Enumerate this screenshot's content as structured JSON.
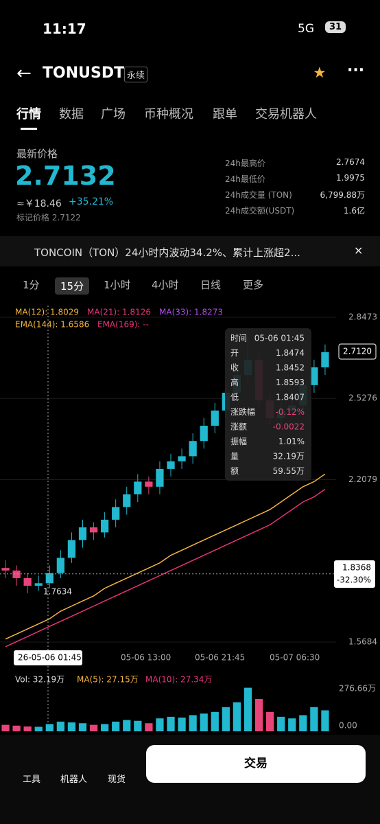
{
  "status": {
    "time": "11:17",
    "network": "5G",
    "battery": "31"
  },
  "header": {
    "symbol": "TONUSDT",
    "tag": "永续"
  },
  "tabs": [
    "行情",
    "数据",
    "广场",
    "币种概况",
    "跟单",
    "交易机器人"
  ],
  "price": {
    "label": "最新价格",
    "value": "2.7132",
    "cny": "≈￥18.46",
    "change": "+35.21%",
    "mark": "标记价格 2.7122"
  },
  "stats": [
    {
      "label": "24h最高价",
      "value": "2.7674"
    },
    {
      "label": "24h最低价",
      "value": "1.9975"
    },
    {
      "label": "24h成交量 (TON)",
      "value": "6,799.88万"
    },
    {
      "label": "24h成交额(USDT)",
      "value": "1.6亿"
    }
  ],
  "news": "TONCOIN（TON）24小时内波动34.2%、累计上涨超2...",
  "intervals": [
    "1分",
    "15分",
    "1小时",
    "4小时",
    "日线",
    "更多"
  ],
  "indicators": {
    "ma12": "MA(12): 1.8029",
    "ma21": "MA(21): 1.8126",
    "ma33": "MA(33): 1.8273",
    "ema144": "EMA(144): 1.6586",
    "ema169": "EMA(169): --"
  },
  "tooltip": [
    [
      "时间",
      "05-06 01:45"
    ],
    [
      "开",
      "1.8474"
    ],
    [
      "收",
      "1.8452"
    ],
    [
      "高",
      "1.8593"
    ],
    [
      "低",
      "1.8407"
    ],
    [
      "涨跌幅",
      "-0.12%"
    ],
    [
      "涨额",
      "-0.0022"
    ],
    [
      "振幅",
      "1.01%"
    ],
    [
      "量",
      "32.19万"
    ],
    [
      "额",
      "59.55万"
    ]
  ],
  "chart_data": {
    "type": "candlestick",
    "ylim": [
      1.5684,
      2.8473
    ],
    "yticks": [
      2.8473,
      2.5276,
      2.2079,
      1.5684
    ],
    "up_color": "#22b8cf",
    "down_color": "#e8447a",
    "candles": [
      [
        1.86,
        1.89,
        1.82,
        1.85
      ],
      [
        1.85,
        1.87,
        1.79,
        1.82
      ],
      [
        1.82,
        1.84,
        1.76,
        1.79
      ],
      [
        1.79,
        1.83,
        1.77,
        1.8
      ],
      [
        1.8,
        1.87,
        1.78,
        1.84
      ],
      [
        1.84,
        1.93,
        1.82,
        1.9
      ],
      [
        1.9,
        2.0,
        1.88,
        1.97
      ],
      [
        1.97,
        2.05,
        1.94,
        2.02
      ],
      [
        2.02,
        2.04,
        1.97,
        2.0
      ],
      [
        2.0,
        2.08,
        1.98,
        2.05
      ],
      [
        2.05,
        2.13,
        2.02,
        2.1
      ],
      [
        2.1,
        2.18,
        2.07,
        2.15
      ],
      [
        2.15,
        2.23,
        2.12,
        2.2
      ],
      [
        2.2,
        2.22,
        2.15,
        2.18
      ],
      [
        2.18,
        2.28,
        2.15,
        2.25
      ],
      [
        2.25,
        2.31,
        2.22,
        2.28
      ],
      [
        2.28,
        2.33,
        2.25,
        2.3
      ],
      [
        2.3,
        2.39,
        2.27,
        2.36
      ],
      [
        2.36,
        2.45,
        2.33,
        2.42
      ],
      [
        2.42,
        2.51,
        2.39,
        2.48
      ],
      [
        2.48,
        2.58,
        2.45,
        2.55
      ],
      [
        2.55,
        2.65,
        2.52,
        2.62
      ],
      [
        2.62,
        2.77,
        2.59,
        2.68
      ],
      [
        2.68,
        2.71,
        2.49,
        2.52
      ],
      [
        2.52,
        2.55,
        2.42,
        2.45
      ],
      [
        2.45,
        2.51,
        2.42,
        2.48
      ],
      [
        2.48,
        2.53,
        2.45,
        2.5
      ],
      [
        2.5,
        2.61,
        2.47,
        2.58
      ],
      [
        2.58,
        2.68,
        2.55,
        2.65
      ],
      [
        2.65,
        2.74,
        2.62,
        2.71
      ]
    ],
    "series": [
      {
        "name": "EMA(144)",
        "color": "#f5b53d",
        "values": [
          1.58,
          1.6,
          1.62,
          1.64,
          1.66,
          1.69,
          1.71,
          1.73,
          1.75,
          1.78,
          1.8,
          1.82,
          1.84,
          1.86,
          1.88,
          1.91,
          1.93,
          1.95,
          1.97,
          1.99,
          2.01,
          2.03,
          2.05,
          2.07,
          2.09,
          2.12,
          2.15,
          2.18,
          2.2,
          2.23
        ]
      },
      {
        "name": "EMA(169)",
        "color": "#e8337a",
        "values": [
          1.55,
          1.57,
          1.59,
          1.61,
          1.63,
          1.65,
          1.67,
          1.69,
          1.71,
          1.73,
          1.75,
          1.77,
          1.79,
          1.81,
          1.83,
          1.85,
          1.87,
          1.89,
          1.91,
          1.93,
          1.95,
          1.97,
          1.99,
          2.01,
          2.03,
          2.06,
          2.09,
          2.12,
          2.14,
          2.17
        ]
      }
    ],
    "last_price": "2.7120",
    "cursor_price": "1.8368",
    "cursor_change": "-32.30%",
    "low_label": "1.7634",
    "cursor_time": "26-05-06 01:45",
    "xlabels": [
      "05-06 13:00",
      "05-06 21:45",
      "05-07 06:30"
    ],
    "volume": {
      "legend": [
        "Vol: 32.19万",
        "MA(5): 27.15万",
        "MA(10): 27.34万"
      ],
      "ylim": [
        0,
        276.66
      ],
      "yticks": [
        {
          "value": 276.66,
          "label": "276.66万"
        },
        {
          "value": 0,
          "label": "0.00"
        }
      ],
      "values": [
        40,
        35,
        30,
        28,
        45,
        60,
        55,
        50,
        40,
        45,
        60,
        70,
        65,
        50,
        80,
        90,
        85,
        100,
        110,
        120,
        150,
        180,
        270,
        200,
        120,
        90,
        80,
        100,
        150,
        130
      ]
    }
  },
  "bottom": {
    "items": [
      "工具",
      "机器人",
      "现货"
    ],
    "button": "交易"
  }
}
